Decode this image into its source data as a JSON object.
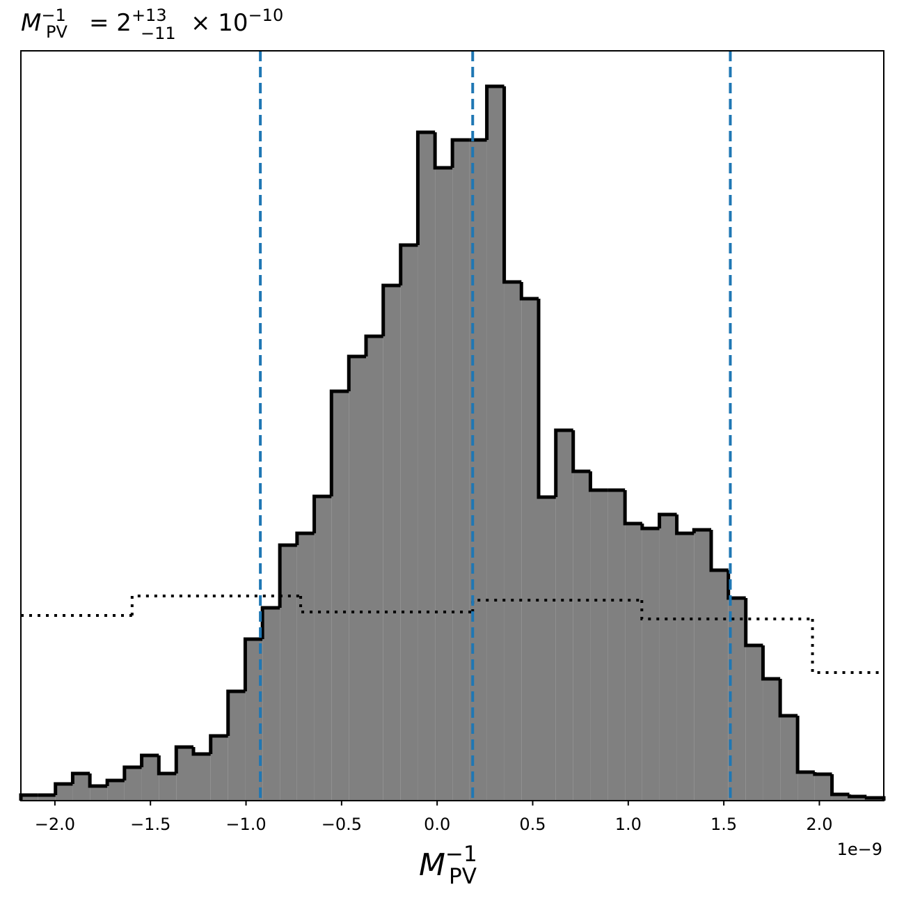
{
  "chart_data": {
    "type": "histogram",
    "title": {
      "symbol": "M",
      "sup": "−1",
      "sub": "PV",
      "equals": "= 2",
      "plus": "+13",
      "minus": "−11",
      "times": "× 10",
      "exponent": "−10"
    },
    "x_label": {
      "symbol": "M",
      "sup": "−1",
      "sub": "PV"
    },
    "x_offset_label": "1e−9",
    "bins": [
      -2.178,
      -2.088,
      -1.997,
      -1.907,
      -1.817,
      -1.726,
      -1.636,
      -1.546,
      -1.456,
      -1.365,
      -1.275,
      -1.185,
      -1.094,
      -1.004,
      -0.914,
      -0.823,
      -0.733,
      -0.643,
      -0.553,
      -0.462,
      -0.372,
      -0.282,
      -0.191,
      -0.101,
      -0.011,
      0.08,
      0.17,
      0.26,
      0.351,
      0.441,
      0.531,
      0.621,
      0.712,
      0.802,
      0.892,
      0.983,
      1.073,
      1.163,
      1.254,
      1.344,
      1.434,
      1.524,
      1.615,
      1.705,
      1.795,
      1.886,
      1.976,
      2.066,
      2.157,
      2.247,
      2.337
    ],
    "values": [
      8,
      8,
      24,
      39,
      21,
      29,
      48,
      65,
      39,
      77,
      67,
      93,
      157,
      232,
      277,
      367,
      384,
      437,
      588,
      638,
      667,
      740,
      798,
      960,
      909,
      949,
      949,
      1026,
      745,
      721,
      436,
      532,
      473,
      446,
      446,
      398,
      391,
      411,
      384,
      389,
      331,
      291,
      223,
      175,
      122,
      41,
      38,
      9,
      6,
      4
    ],
    "color": "#808080",
    "edge_color": "#000000",
    "prior": {
      "bins": [
        -2.178,
        -1.596,
        -0.714,
        0.186,
        1.071,
        1.964,
        2.337
      ],
      "values": [
        266,
        294,
        271,
        288,
        261,
        184
      ],
      "color": "#000000",
      "style": "dotted"
    },
    "vlines": {
      "values": [
        -0.925,
        0.186,
        1.534
      ],
      "color": "#1f77b4",
      "style": "dashed"
    },
    "xlim": [
      -2.178,
      2.337
    ],
    "ylim": [
      0,
      1077
    ],
    "xticks": [
      {
        "value": -2,
        "label": "−2.0"
      },
      {
        "value": -1.5,
        "label": "−1.5"
      },
      {
        "value": -1,
        "label": "−1.0"
      },
      {
        "value": -0.5,
        "label": "−0.5"
      },
      {
        "value": 0,
        "label": "0.0"
      },
      0.5,
      {
        "value": 1,
        "label": "1.0"
      },
      1.5,
      {
        "value": 2,
        "label": "2.0"
      }
    ]
  }
}
